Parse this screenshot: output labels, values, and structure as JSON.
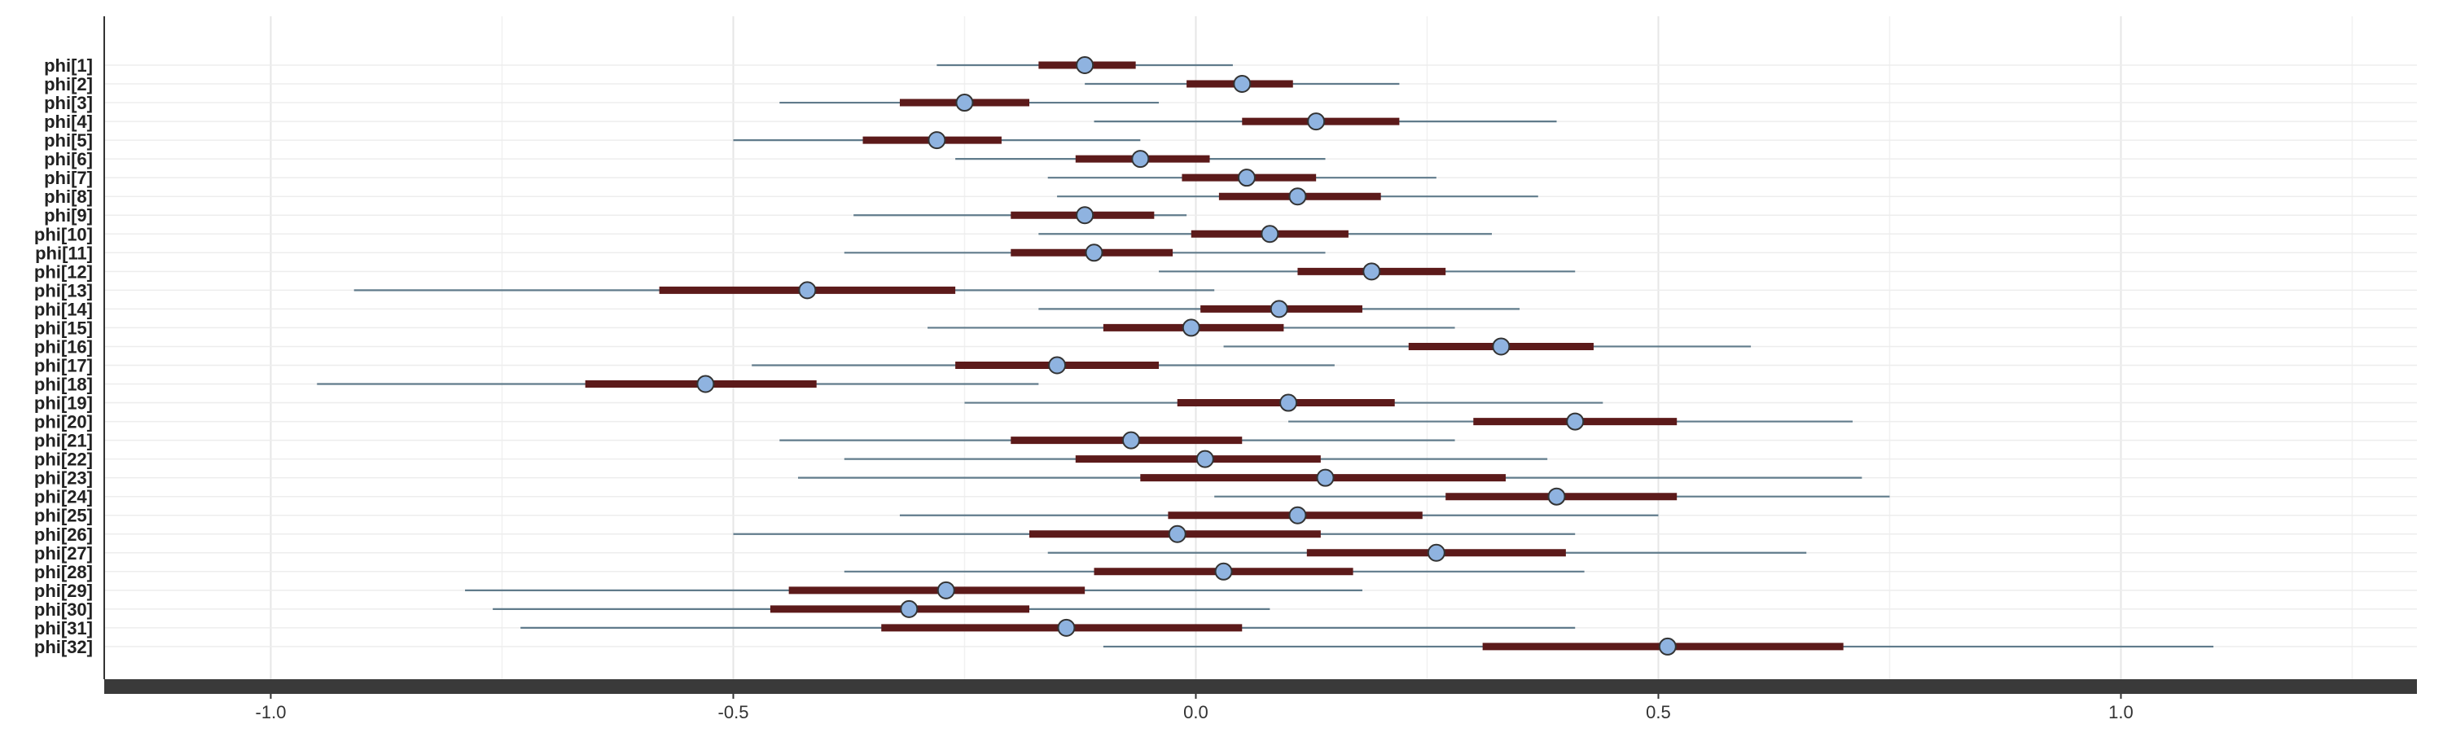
{
  "chart_data": {
    "type": "forest",
    "title": "",
    "xlabel": "",
    "ylabel": "",
    "xlim": [
      -1.18,
      1.32
    ],
    "xticks": [
      -1.0,
      -0.5,
      0.0,
      0.5,
      1.0
    ],
    "xtick_labels": [
      "-1.0",
      "-0.5",
      "0.0",
      "0.5",
      "1.0"
    ],
    "grid": true,
    "categories": [
      "phi[1]",
      "phi[2]",
      "phi[3]",
      "phi[4]",
      "phi[5]",
      "phi[6]",
      "phi[7]",
      "phi[8]",
      "phi[9]",
      "phi[10]",
      "phi[11]",
      "phi[12]",
      "phi[13]",
      "phi[14]",
      "phi[15]",
      "phi[16]",
      "phi[17]",
      "phi[18]",
      "phi[19]",
      "phi[20]",
      "phi[21]",
      "phi[22]",
      "phi[23]",
      "phi[24]",
      "phi[25]",
      "phi[26]",
      "phi[27]",
      "phi[28]",
      "phi[29]",
      "phi[30]",
      "phi[31]",
      "phi[32]"
    ],
    "median": [
      -0.12,
      0.05,
      -0.25,
      0.13,
      -0.28,
      -0.06,
      0.055,
      0.11,
      -0.12,
      0.08,
      -0.11,
      0.19,
      -0.42,
      0.09,
      -0.005,
      0.33,
      -0.15,
      -0.53,
      0.1,
      0.41,
      -0.07,
      0.01,
      0.14,
      0.39,
      0.11,
      -0.02,
      0.26,
      0.03,
      -0.27,
      -0.31,
      -0.14,
      0.51
    ],
    "inner_low": [
      -0.17,
      -0.01,
      -0.32,
      0.05,
      -0.36,
      -0.13,
      -0.015,
      0.025,
      -0.2,
      -0.005,
      -0.2,
      0.11,
      -0.58,
      0.005,
      -0.1,
      0.23,
      -0.26,
      -0.66,
      -0.02,
      0.3,
      -0.2,
      -0.13,
      -0.06,
      0.27,
      -0.03,
      -0.18,
      0.12,
      -0.11,
      -0.44,
      -0.46,
      -0.34,
      0.31
    ],
    "inner_high": [
      -0.065,
      0.105,
      -0.18,
      0.22,
      -0.21,
      0.015,
      0.13,
      0.2,
      -0.045,
      0.165,
      -0.025,
      0.27,
      -0.26,
      0.18,
      0.095,
      0.43,
      -0.04,
      -0.41,
      0.215,
      0.52,
      0.05,
      0.135,
      0.335,
      0.52,
      0.245,
      0.135,
      0.4,
      0.17,
      -0.12,
      -0.18,
      0.05,
      0.7
    ],
    "outer_low": [
      -0.28,
      -0.12,
      -0.45,
      -0.11,
      -0.5,
      -0.26,
      -0.16,
      -0.15,
      -0.37,
      -0.17,
      -0.38,
      -0.04,
      -0.91,
      -0.17,
      -0.29,
      0.03,
      -0.48,
      -0.95,
      -0.25,
      0.1,
      -0.45,
      -0.38,
      -0.43,
      0.02,
      -0.32,
      -0.5,
      -0.16,
      -0.38,
      -0.79,
      -0.76,
      -0.73,
      -0.1
    ],
    "outer_high": [
      0.04,
      0.22,
      -0.04,
      0.39,
      -0.06,
      0.14,
      0.26,
      0.37,
      -0.01,
      0.32,
      0.14,
      0.41,
      0.02,
      0.35,
      0.28,
      0.6,
      0.15,
      -0.17,
      0.44,
      0.71,
      0.28,
      0.38,
      0.72,
      0.75,
      0.5,
      0.41,
      0.66,
      0.42,
      0.18,
      0.08,
      0.41,
      1.1
    ]
  },
  "colors": {
    "outer_line": "#607b8b",
    "inner_bar": "#5c1a1a",
    "point_fill": "#8fb3e0",
    "point_stroke": "#333333",
    "axis_bar": "#3a3a3a",
    "grid": "#e6e6e6"
  }
}
